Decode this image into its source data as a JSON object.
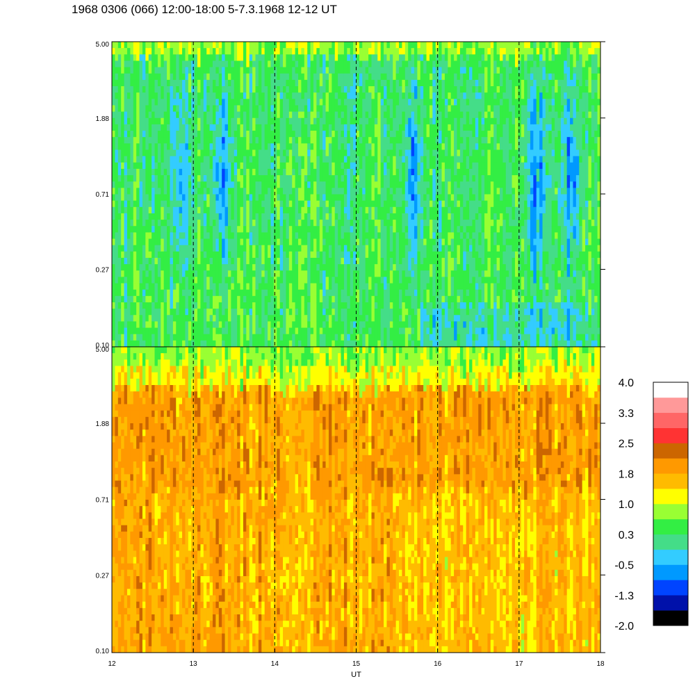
{
  "title": "1968 0306 (066) 12:00-18:00 5-7.3.1968  12-12 UT",
  "chart_data": {
    "type": "heatmap",
    "title": "1968 0306 (066) 12:00-18:00 5-7.3.1968  12-12 UT",
    "xlabel": "UT",
    "ylabel": "",
    "x_ticks": [
      "12",
      "13",
      "14",
      "15",
      "16",
      "17",
      "18"
    ],
    "x_range": [
      12,
      18
    ],
    "y_scale": "log",
    "y_range": [
      0.1,
      5.0
    ],
    "y_ticks": [
      "0.10",
      "0.27",
      "0.71",
      "1.88",
      "5.00"
    ],
    "grid": "vertical dashed lines at each hour",
    "panels": [
      {
        "name": "upper",
        "dominant_levels": "green to cyan (about 0.3 to -0.5), with dark blue intrusions (about -1.3 to -2.0)",
        "blue_intrusions_ut": [
          12.85,
          13.35,
          15.7,
          17.2,
          17.65
        ]
      },
      {
        "name": "lower",
        "dominant_levels": "yellow to orange (about 1.0 to 2.0), green near the top edge"
      }
    ],
    "colorbar": {
      "labels": [
        "4.0",
        "3.3",
        "2.5",
        "1.8",
        "1.0",
        "0.3",
        "-0.5",
        "-1.3",
        "-2.0"
      ],
      "colors": [
        "#000000",
        "#0011aa",
        "#0044ff",
        "#0099ff",
        "#33ccff",
        "#44dd88",
        "#33ee44",
        "#99ff33",
        "#ffff00",
        "#ffbb00",
        "#ff9900",
        "#cc6600",
        "#ff3333",
        "#ff6666",
        "#ff9999",
        "#ffffff"
      ]
    }
  }
}
